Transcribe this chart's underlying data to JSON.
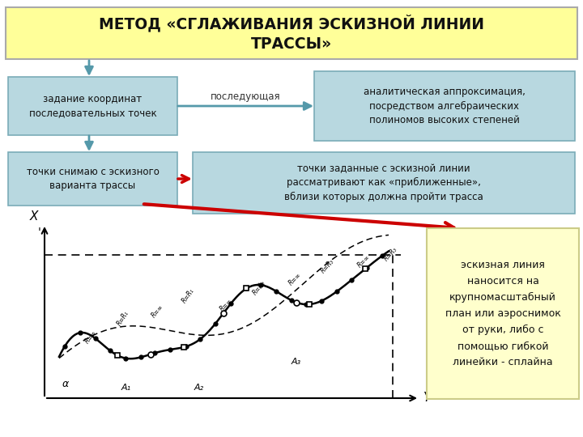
{
  "title": "МЕТОД «СГЛАЖИВАНИЯ ЭСКИЗНОЙ ЛИНИИ\nТРАССЫ»",
  "title_bg": "#ffff99",
  "title_border": "#aaaaaa",
  "box1_text": "задание координат\nпоследовательных точек",
  "box2_text": "точки снимаю с эскизного\nварианта трассы",
  "box3_text": "аналитическая аппроксимация,\nпосредством алгебраических\nполиномов высоких степеней",
  "box4_text": "точки заданные с эскизной линии\nрассматривают как «приближенные»,\nвблизи которых должна пройти трасса",
  "box5_text": "эскизная линия\nнаносится на\nкрупномасштабный\nплан или аэроснимок\nот руки, либо с\nпомощью гибкой\nлинейки - сплайна",
  "arrow_label": "последующая",
  "box_fill": "#b8d8e0",
  "box_border": "#7aacb8",
  "box5_fill": "#ffffcc",
  "box5_border": "#cccc88",
  "bg_color": "#ffffff",
  "red_color": "#cc0000",
  "teal_color": "#5599aa"
}
